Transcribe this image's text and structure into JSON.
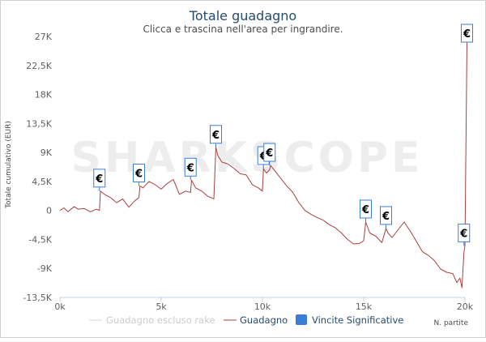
{
  "chart_data": {
    "type": "line",
    "title": "Totale guadagno",
    "subtitle": "Clicca e trascina nell'area per ingrandire.",
    "watermark": "SHARKSCOPE",
    "xlabel": "N. partite",
    "ylabel": "Totale cumulativo (EUR)",
    "xlim": [
      0,
      20000
    ],
    "ylim": [
      -13500,
      27000
    ],
    "x_ticks": [
      {
        "value": 0,
        "label": "0k"
      },
      {
        "value": 5000,
        "label": "5k"
      },
      {
        "value": 10000,
        "label": "10k"
      },
      {
        "value": 15000,
        "label": "15k"
      },
      {
        "value": 20000,
        "label": "20k"
      }
    ],
    "y_ticks": [
      {
        "value": 27000,
        "label": "27K"
      },
      {
        "value": 22500,
        "label": "22,5K"
      },
      {
        "value": 18000,
        "label": "18K"
      },
      {
        "value": 13500,
        "label": "13,5K"
      },
      {
        "value": 9000,
        "label": "9K"
      },
      {
        "value": 4500,
        "label": "4,5K"
      },
      {
        "value": 0,
        "label": "0"
      },
      {
        "value": -4500,
        "label": "-4,5K"
      },
      {
        "value": -9000,
        "label": "-9K"
      },
      {
        "value": -13500,
        "label": "-13,5K"
      }
    ],
    "grid": false,
    "legend_position": "bottom",
    "legend": [
      {
        "name": "Guadagno escluso rake",
        "color": "#d9d9d9",
        "symbol": "line",
        "visible": false
      },
      {
        "name": "Guadagno",
        "color": "#a8413f",
        "symbol": "line",
        "visible": true
      },
      {
        "name": "Vincite Significative",
        "color": "#3a7fd5",
        "symbol": "square",
        "visible": true
      }
    ],
    "series": [
      {
        "name": "Guadagno",
        "color": "#a8413f",
        "x": [
          0,
          200,
          400,
          700,
          900,
          1200,
          1500,
          1800,
          1950,
          2000,
          2200,
          2500,
          2800,
          3100,
          3400,
          3700,
          3900,
          3950,
          4100,
          4400,
          4700,
          5000,
          5300,
          5600,
          5900,
          6200,
          6450,
          6500,
          6700,
          7000,
          7300,
          7600,
          7700,
          7800,
          8000,
          8300,
          8600,
          8900,
          9200,
          9500,
          9800,
          10000,
          10050,
          10200,
          10350,
          10400,
          10600,
          10900,
          11200,
          11500,
          11800,
          12100,
          12400,
          12700,
          13000,
          13300,
          13600,
          13900,
          14200,
          14500,
          14800,
          15000,
          15100,
          15300,
          15600,
          15900,
          16100,
          16200,
          16400,
          16700,
          17000,
          17300,
          17600,
          17900,
          18200,
          18500,
          18800,
          19100,
          19400,
          19600,
          19750,
          19850,
          19950,
          20000,
          20100
        ],
        "values": [
          0,
          400,
          -200,
          600,
          200,
          300,
          -200,
          200,
          0,
          3000,
          2500,
          2000,
          1200,
          1800,
          500,
          1500,
          2000,
          3800,
          3500,
          4500,
          4000,
          3300,
          4200,
          4800,
          2500,
          3000,
          2800,
          4700,
          3500,
          3000,
          2200,
          1800,
          9800,
          8500,
          7500,
          7200,
          6500,
          5700,
          5500,
          4000,
          3500,
          3000,
          6500,
          5800,
          6300,
          7000,
          6200,
          5000,
          3800,
          2800,
          1200,
          0,
          -600,
          -1100,
          -1500,
          -2200,
          -2700,
          -3500,
          -4500,
          -5200,
          -5100,
          -4700,
          -1800,
          -3500,
          -4000,
          -5000,
          -2800,
          -3500,
          -4200,
          -3000,
          -1800,
          -3200,
          -4800,
          -6400,
          -7000,
          -7800,
          -9100,
          -9600,
          -9800,
          -11200,
          -10500,
          -12000,
          -6500,
          -5500,
          26000
        ]
      }
    ],
    "significant_wins": [
      {
        "x": 1950,
        "y": 3000,
        "symbol": "€"
      },
      {
        "x": 3900,
        "y": 3800,
        "symbol": "€"
      },
      {
        "x": 6450,
        "y": 4700,
        "symbol": "€"
      },
      {
        "x": 7700,
        "y": 9800,
        "symbol": "€"
      },
      {
        "x": 10050,
        "y": 6500,
        "symbol": "€"
      },
      {
        "x": 10350,
        "y": 7000,
        "symbol": "€"
      },
      {
        "x": 15100,
        "y": -1800,
        "symbol": "€"
      },
      {
        "x": 16100,
        "y": -2800,
        "symbol": "€"
      },
      {
        "x": 19950,
        "y": -5500,
        "symbol": "€"
      },
      {
        "x": 20100,
        "y": 26000,
        "symbol": "€"
      }
    ]
  }
}
